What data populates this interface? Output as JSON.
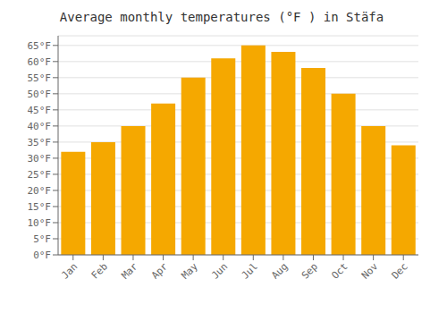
{
  "chart_data": {
    "type": "bar",
    "title": "Average monthly temperatures (°F ) in Stäfa",
    "categories": [
      "Jan",
      "Feb",
      "Mar",
      "Apr",
      "May",
      "Jun",
      "Jul",
      "Aug",
      "Sep",
      "Oct",
      "Nov",
      "Dec"
    ],
    "values": [
      32,
      35,
      40,
      47,
      55,
      61,
      65,
      63,
      58,
      50,
      40,
      34
    ],
    "color": "#F5A800",
    "ylim": [
      0,
      68
    ],
    "yticks": [
      {
        "value": 0,
        "label": "0°F"
      },
      {
        "value": 5,
        "label": "5°F"
      },
      {
        "value": 10,
        "label": "10°F"
      },
      {
        "value": 15,
        "label": "15°F"
      },
      {
        "value": 20,
        "label": "20°F"
      },
      {
        "value": 25,
        "label": "25°F"
      },
      {
        "value": 30,
        "label": "30°F"
      },
      {
        "value": 35,
        "label": "35°F"
      },
      {
        "value": 40,
        "label": "40°F"
      },
      {
        "value": 45,
        "label": "45°F"
      },
      {
        "value": 50,
        "label": "50°F"
      },
      {
        "value": 55,
        "label": "55°F"
      },
      {
        "value": 60,
        "label": "60°F"
      },
      {
        "value": 65,
        "label": "65°F"
      }
    ],
    "grid": true
  }
}
